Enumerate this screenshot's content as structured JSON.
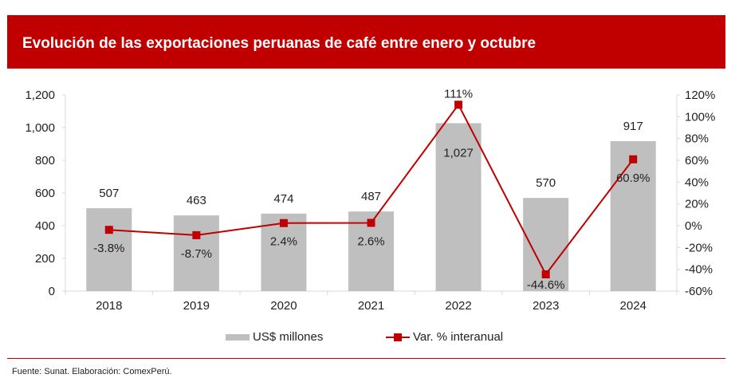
{
  "header": {
    "title": "Evolución de las exportaciones peruanas de café entre enero y octubre"
  },
  "chart_data": {
    "type": "bar",
    "title": "Evolución de las exportaciones peruanas de café entre enero y octubre",
    "categories": [
      "2018",
      "2019",
      "2020",
      "2021",
      "2022",
      "2023",
      "2024"
    ],
    "series": [
      {
        "name": "US$ millones",
        "type": "bar",
        "axis": "left",
        "color": "#bfbfbf",
        "values": [
          507,
          463,
          474,
          487,
          1027,
          570,
          917
        ],
        "labels": [
          "507",
          "463",
          "474",
          "487",
          "1,027",
          "570",
          "917"
        ]
      },
      {
        "name": "Var. % interanual",
        "type": "line",
        "axis": "right",
        "color": "#c00000",
        "values": [
          -3.8,
          -8.7,
          2.4,
          2.6,
          111,
          -44.6,
          60.9
        ],
        "labels": [
          "-3.8%",
          "-8.7%",
          "2.4%",
          "2.6%",
          "111%",
          "-44.6%",
          "60.9%"
        ]
      }
    ],
    "y_left": {
      "ylim": [
        0,
        1200
      ],
      "ticks": [
        "0",
        "200",
        "400",
        "600",
        "800",
        "1,000",
        "1,200"
      ]
    },
    "y_right": {
      "ylim": [
        -60,
        120
      ],
      "ticks": [
        "-60%",
        "-40%",
        "-20%",
        "0%",
        "20%",
        "40%",
        "60%",
        "80%",
        "100%",
        "120%"
      ]
    },
    "legend_position": "bottom",
    "grid": false
  },
  "legend": {
    "bar_label": "US$ millones",
    "line_label": "Var. % interanual"
  },
  "footer": {
    "source": "Fuente: Sunat. Elaboración: ComexPerú."
  }
}
